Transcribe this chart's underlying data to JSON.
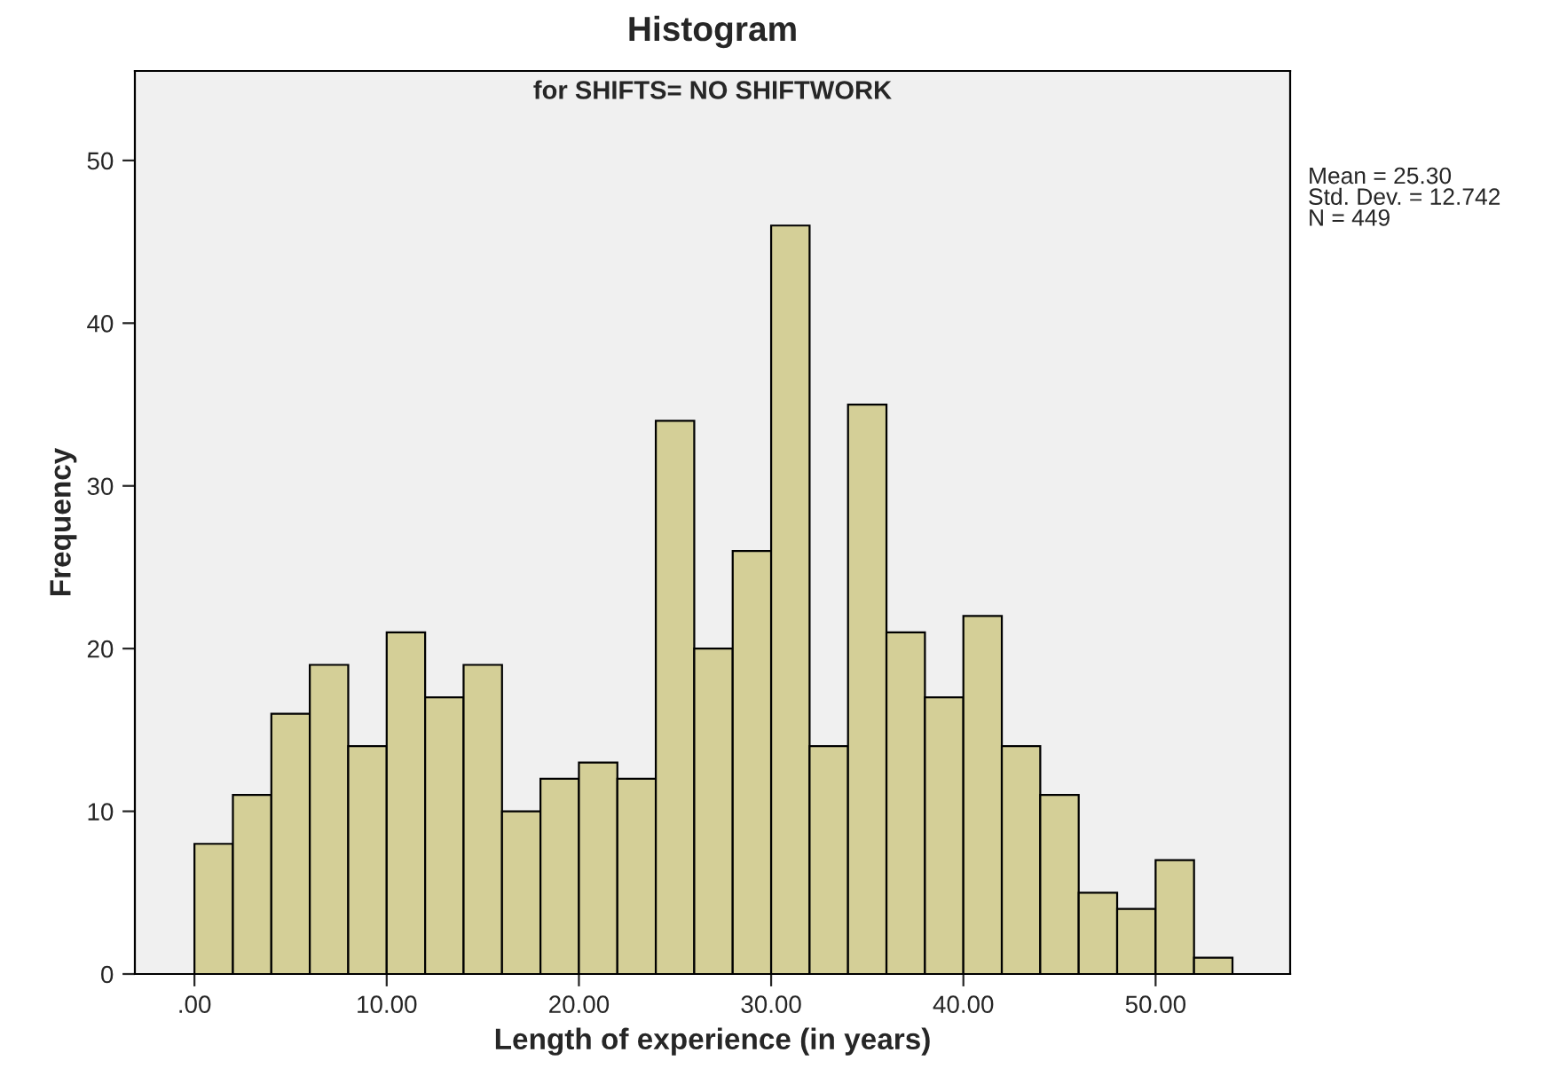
{
  "chart_data": {
    "type": "histogram",
    "title": "Histogram",
    "subtitle": "for SHIFTS= NO SHIFTWORK",
    "xlabel": "Length of experience (in years)",
    "ylabel": "Frequency",
    "bins": [
      0,
      2,
      4,
      6,
      8,
      10,
      12,
      14,
      16,
      18,
      20,
      22,
      24,
      26,
      28,
      30,
      32,
      34,
      36,
      38,
      40,
      42,
      44,
      46,
      48,
      50,
      52,
      54
    ],
    "values": [
      8,
      11,
      16,
      19,
      14,
      21,
      17,
      19,
      10,
      12,
      13,
      12,
      34,
      20,
      26,
      46,
      14,
      35,
      21,
      17,
      22,
      14,
      11,
      5,
      4,
      7,
      1
    ],
    "color": "#d4cf97",
    "xlim": [
      -3.1,
      57
    ],
    "ylim": [
      0,
      55.5
    ],
    "xticks": [
      {
        "value": 0,
        "label": ".00"
      },
      {
        "value": 10,
        "label": "10.00"
      },
      {
        "value": 20,
        "label": "20.00"
      },
      {
        "value": 30,
        "label": "30.00"
      },
      {
        "value": 40,
        "label": "40.00"
      },
      {
        "value": 50,
        "label": "50.00"
      }
    ],
    "yticks": [
      0,
      10,
      20,
      30,
      40,
      50
    ],
    "annotations": [
      "Mean = 25.30\nStd. Dev. = 12.742\nN = 449"
    ],
    "grid": false,
    "legend": false
  }
}
